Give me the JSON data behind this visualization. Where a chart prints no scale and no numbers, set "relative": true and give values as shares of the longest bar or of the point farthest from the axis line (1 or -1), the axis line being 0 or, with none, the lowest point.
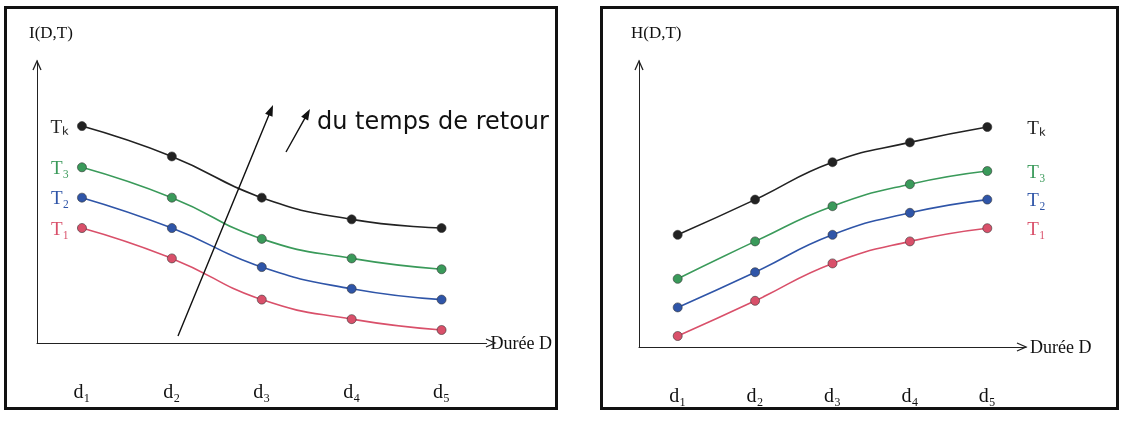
{
  "chart_data": [
    {
      "type": "line",
      "relative": true,
      "ylabel": "I(D,T)",
      "xlabel": "Durée D",
      "categories": [
        "d₁",
        "d₂",
        "d₃",
        "d₄",
        "d₅"
      ],
      "marker": "circle",
      "grid": false,
      "legend": false,
      "series": [
        {
          "name": "Tₖ",
          "color": "#222222",
          "values": [
            1,
            0.86,
            0.67,
            0.57,
            0.53
          ]
        },
        {
          "name": "T₃",
          "color": "#3a9a5a",
          "values": [
            0.81,
            0.67,
            0.48,
            0.39,
            0.34
          ]
        },
        {
          "name": "T₂",
          "color": "#2f55a8",
          "values": [
            0.67,
            0.53,
            0.35,
            0.25,
            0.2
          ]
        },
        {
          "name": "T₁",
          "color": "#d9506a",
          "values": [
            0.53,
            0.39,
            0.2,
            0.11,
            0.06
          ]
        }
      ],
      "annotations": [
        "du temps de retour"
      ]
    },
    {
      "type": "line",
      "relative": true,
      "ylabel": "H(D,T)",
      "xlabel": "Durée D",
      "categories": [
        "d₁",
        "d₂",
        "d₃",
        "d₄",
        "d₅"
      ],
      "marker": "circle",
      "grid": false,
      "legend": false,
      "series": [
        {
          "name": "Tₖ",
          "color": "#222222",
          "values": [
            0.51,
            0.67,
            0.84,
            0.93,
            1
          ]
        },
        {
          "name": "T₃",
          "color": "#3a9a5a",
          "values": [
            0.31,
            0.48,
            0.64,
            0.74,
            0.8
          ]
        },
        {
          "name": "T₂",
          "color": "#2f55a8",
          "values": [
            0.18,
            0.34,
            0.51,
            0.61,
            0.67
          ]
        },
        {
          "name": "T₁",
          "color": "#d9506a",
          "values": [
            0.05,
            0.21,
            0.38,
            0.48,
            0.54
          ]
        }
      ]
    }
  ]
}
